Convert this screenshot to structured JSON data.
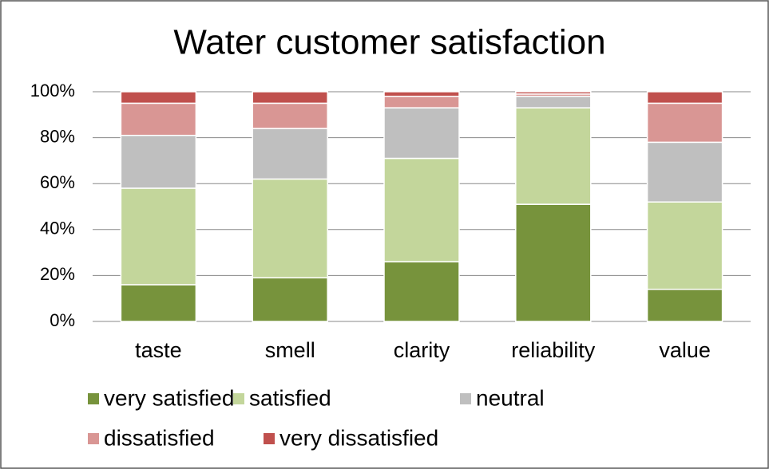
{
  "chart_data": {
    "type": "stacked_bar",
    "title": "Water customer satisfaction",
    "categories": [
      "taste",
      "smell",
      "clarity",
      "reliability",
      "value"
    ],
    "series": [
      {
        "name": "very satisfied",
        "color": "#77933c",
        "values": [
          16,
          19,
          26,
          51,
          14
        ]
      },
      {
        "name": "satisfied",
        "color": "#c3d69b",
        "values": [
          42,
          43,
          45,
          42,
          38
        ]
      },
      {
        "name": "neutral",
        "color": "#bfbfbf",
        "values": [
          23,
          22,
          22,
          5,
          26
        ]
      },
      {
        "name": "dissatisfied",
        "color": "#d99694",
        "values": [
          14,
          11,
          5,
          1,
          17
        ]
      },
      {
        "name": "very dissatisfied",
        "color": "#c0504d",
        "values": [
          5,
          5,
          2,
          1,
          5
        ]
      }
    ],
    "ylim": [
      0,
      100
    ],
    "yticks": [
      {
        "value": 0,
        "label": "0%"
      },
      {
        "value": 20,
        "label": "20%"
      },
      {
        "value": 40,
        "label": "40%"
      },
      {
        "value": 60,
        "label": "60%"
      },
      {
        "value": 80,
        "label": "80%"
      },
      {
        "value": 100,
        "label": "100%"
      }
    ],
    "grid": true,
    "legend": "bottom"
  }
}
